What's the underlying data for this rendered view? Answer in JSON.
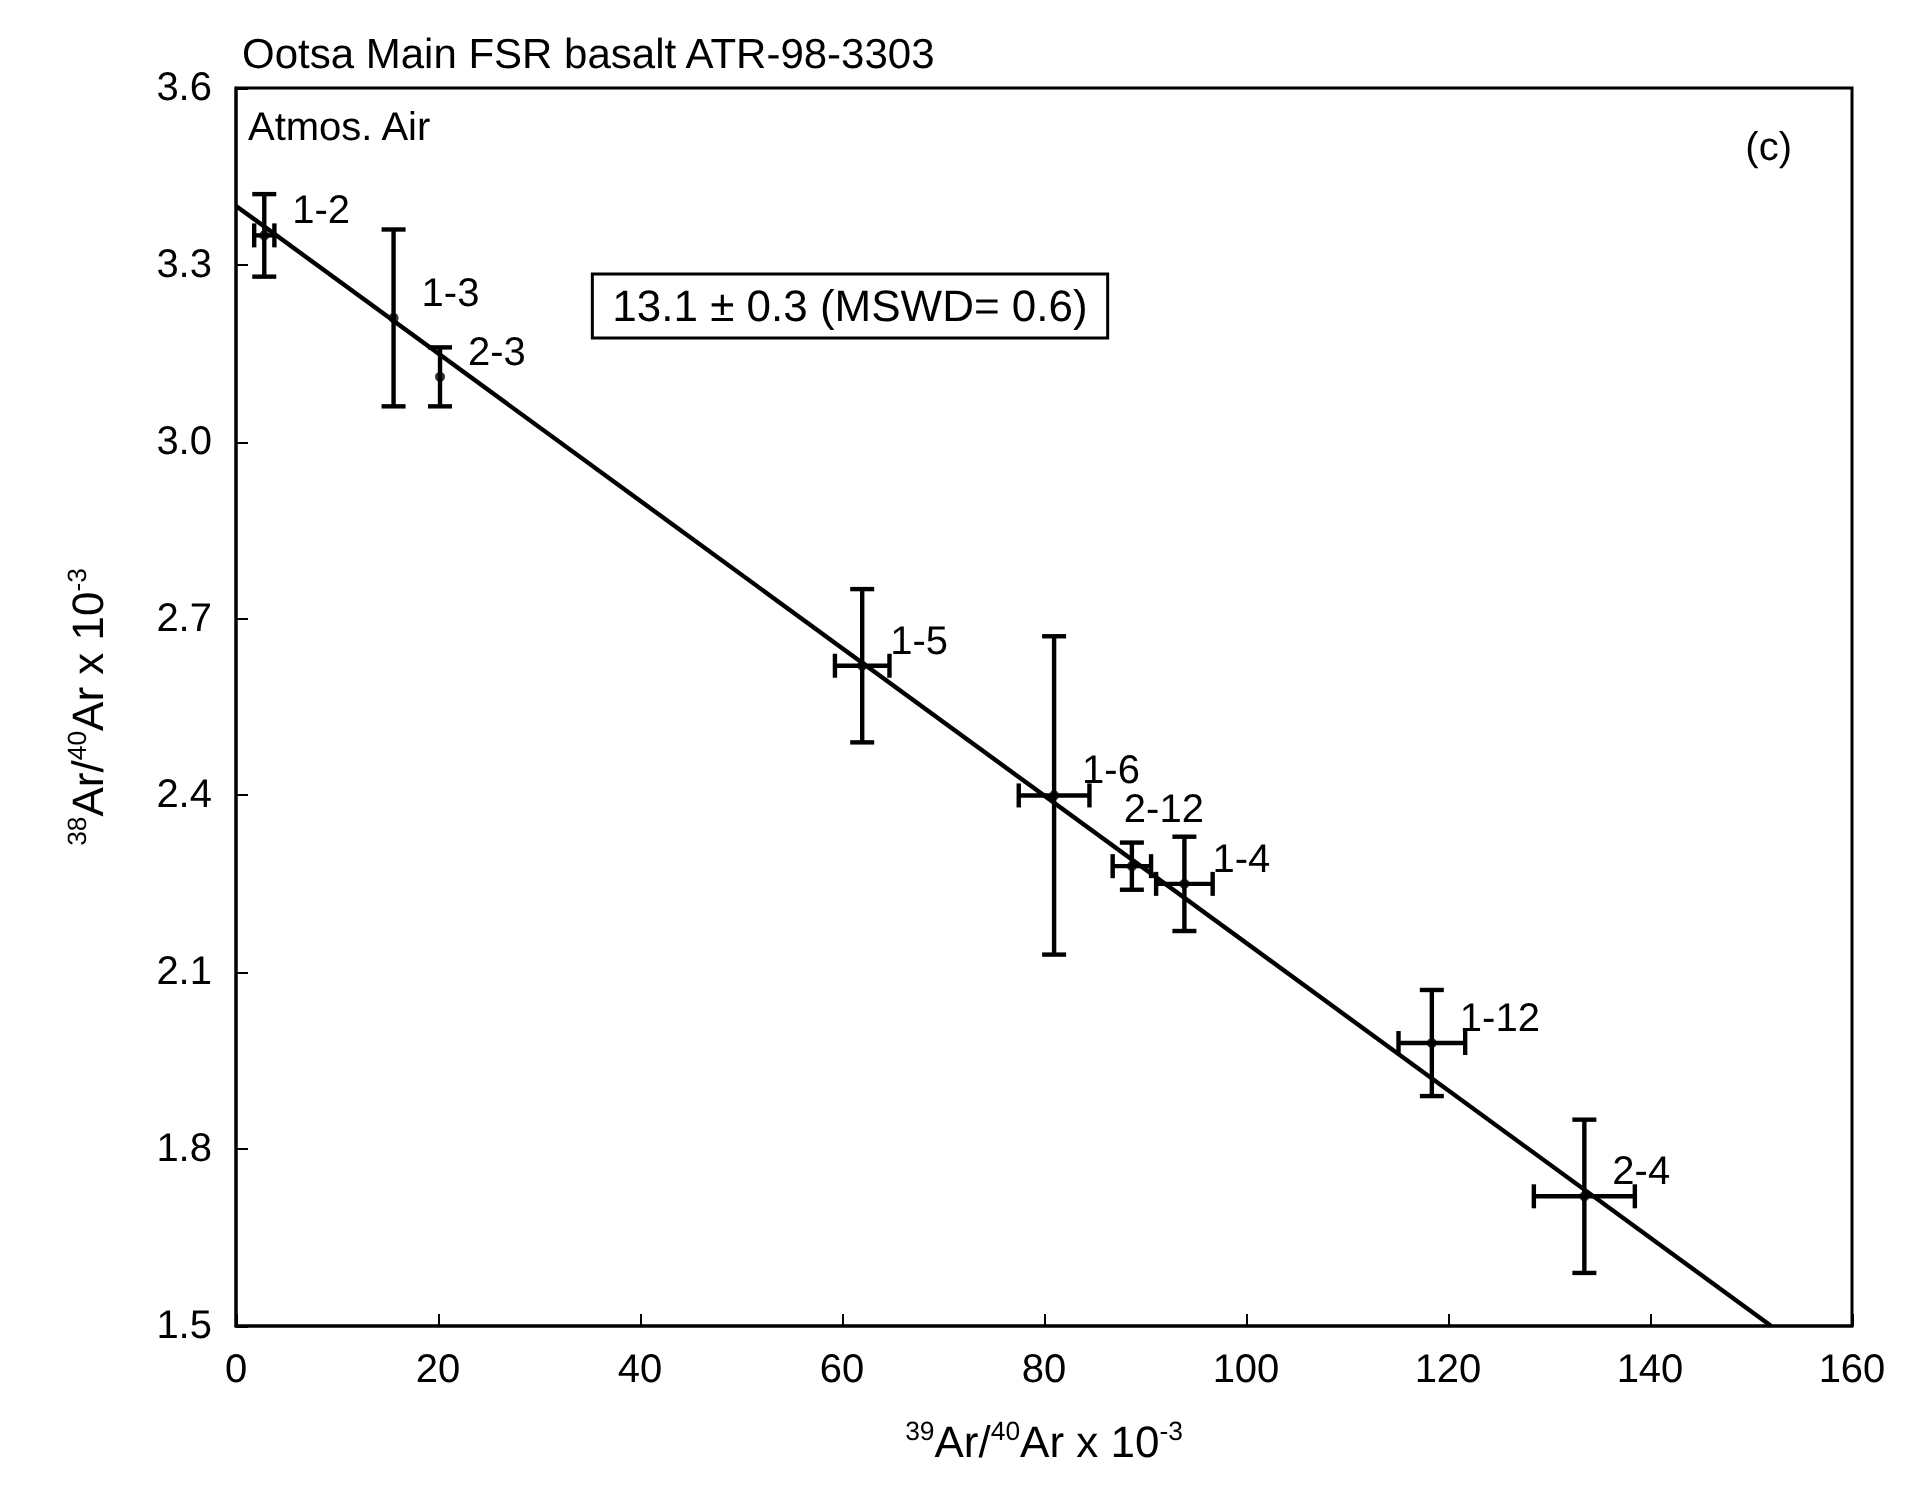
{
  "chart_data": {
    "type": "scatter",
    "title": "Ootsa Main FSR basalt ATR-98-3303",
    "xlabel": "$^{39}$Ar/$^{40}$Ar x 10$^{-3}$",
    "ylabel": "$^{38}$Ar/$^{40}$Ar x 10$^{-3}$",
    "xlim": [
      0,
      160
    ],
    "xticks": [
      0,
      20,
      40,
      60,
      80,
      100,
      120,
      140,
      160
    ],
    "ylim": [
      1.5,
      3.6
    ],
    "yticks": [
      1.5,
      1.8,
      2.1,
      2.4,
      2.7,
      {
        "value": 3.0,
        "label": "3.0"
      },
      3.3,
      3.6
    ],
    "grid": false,
    "marker": "circle",
    "series": [
      {
        "color": "#000000",
        "x": [
          2.8,
          15.6,
          20.2,
          62,
          81,
          88.7,
          93.9,
          118.4,
          133.5
        ],
        "values": [
          3.35,
          3.21,
          3.11,
          2.62,
          2.4,
          2.28,
          2.25,
          1.98,
          1.72
        ],
        "errors": [
          0.07,
          0.15,
          0.05,
          0.13,
          0.27,
          0.04,
          0.08,
          0.09,
          0.13
        ],
        "xerrors": [
          1,
          null,
          null,
          2.7,
          3.5,
          1.9,
          2.8,
          3.3,
          5
        ]
      },
      {
        "type": "line",
        "color": "#000000",
        "x": [
          0,
          152
        ],
        "values": [
          3.4,
          1.5
        ],
        "line_style": "solid",
        "marker": "none"
      }
    ],
    "annotations": [
      "Atmos. Air",
      "(c)",
      "13.1 ± 0.3 (MSWD= 0.6)",
      {
        "text": "1-2",
        "x": 2.8,
        "y": 3.35
      },
      {
        "text": "1-3",
        "x": 15.6,
        "y": 3.21
      },
      {
        "text": "2-3",
        "x": 20.2,
        "y": 3.11
      },
      {
        "text": "1-5",
        "x": 62,
        "y": 2.62
      },
      {
        "text": "1-6",
        "x": 81,
        "y": 2.4
      },
      {
        "text": "2-12",
        "x": 88.7,
        "y": 2.28
      },
      {
        "text": "1-4",
        "x": 93.9,
        "y": 2.25
      },
      {
        "text": "1-12",
        "x": 118.4,
        "y": 1.98
      },
      {
        "text": "2-4",
        "x": 133.5,
        "y": 1.72
      }
    ]
  }
}
